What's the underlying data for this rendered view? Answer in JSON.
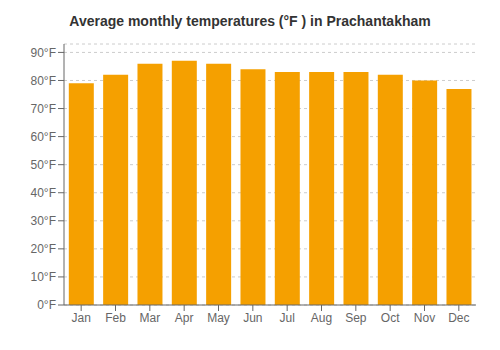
{
  "chart_data": {
    "type": "bar",
    "title": "Average monthly temperatures (°F ) in Prachantakham",
    "categories": [
      "Jan",
      "Feb",
      "Mar",
      "Apr",
      "May",
      "Jun",
      "Jul",
      "Aug",
      "Sep",
      "Oct",
      "Nov",
      "Dec"
    ],
    "values": [
      79,
      82,
      86,
      87,
      86,
      84,
      83,
      83,
      83,
      82,
      80,
      77
    ],
    "color": "#F5A000",
    "ylim": [
      0,
      93
    ],
    "yticks": [
      {
        "value": 0,
        "label": "0°F"
      },
      {
        "value": 10,
        "label": "10°F"
      },
      {
        "value": 20,
        "label": "20°F"
      },
      {
        "value": 30,
        "label": "30°F"
      },
      {
        "value": 40,
        "label": "40°F"
      },
      {
        "value": 50,
        "label": "50°F"
      },
      {
        "value": 60,
        "label": "60°F"
      },
      {
        "value": 70,
        "label": "70°F"
      },
      {
        "value": 80,
        "label": "80°F"
      },
      {
        "value": 90,
        "label": "90°F"
      }
    ],
    "grid": true
  }
}
